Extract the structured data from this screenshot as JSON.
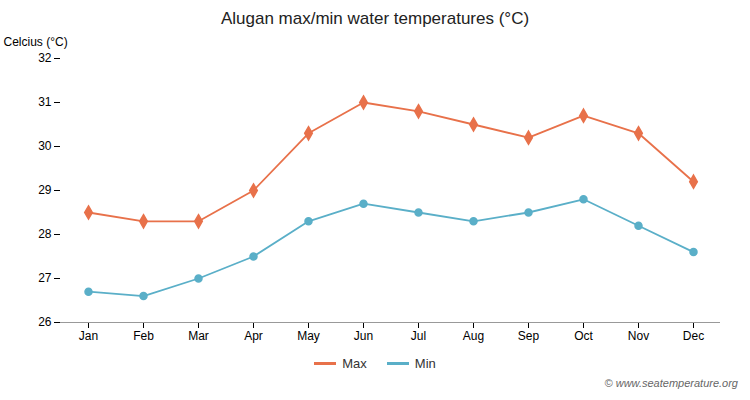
{
  "chart_data": {
    "type": "line",
    "title": "Alugan max/min water temperatures (°C)",
    "ylabel": "Celcius (°C)",
    "categories": [
      "Jan",
      "Feb",
      "Mar",
      "Apr",
      "May",
      "Jun",
      "Jul",
      "Aug",
      "Sep",
      "Oct",
      "Nov",
      "Dec"
    ],
    "series": [
      {
        "name": "Max",
        "color": "#e8714a",
        "marker": "diamond",
        "values": [
          28.5,
          28.3,
          28.3,
          29.0,
          30.3,
          31.0,
          30.8,
          30.5,
          30.2,
          30.7,
          30.3,
          29.2
        ]
      },
      {
        "name": "Min",
        "color": "#5aafc8",
        "marker": "circle",
        "values": [
          26.7,
          26.6,
          27.0,
          27.5,
          28.3,
          28.7,
          28.5,
          28.3,
          28.5,
          28.8,
          28.2,
          27.6
        ]
      }
    ],
    "ylim": [
      26,
      32
    ],
    "yticks": [
      26,
      27,
      28,
      29,
      30,
      31,
      32
    ],
    "legend": "bottom",
    "annotations": [
      "© www.seatemperature.org"
    ]
  }
}
